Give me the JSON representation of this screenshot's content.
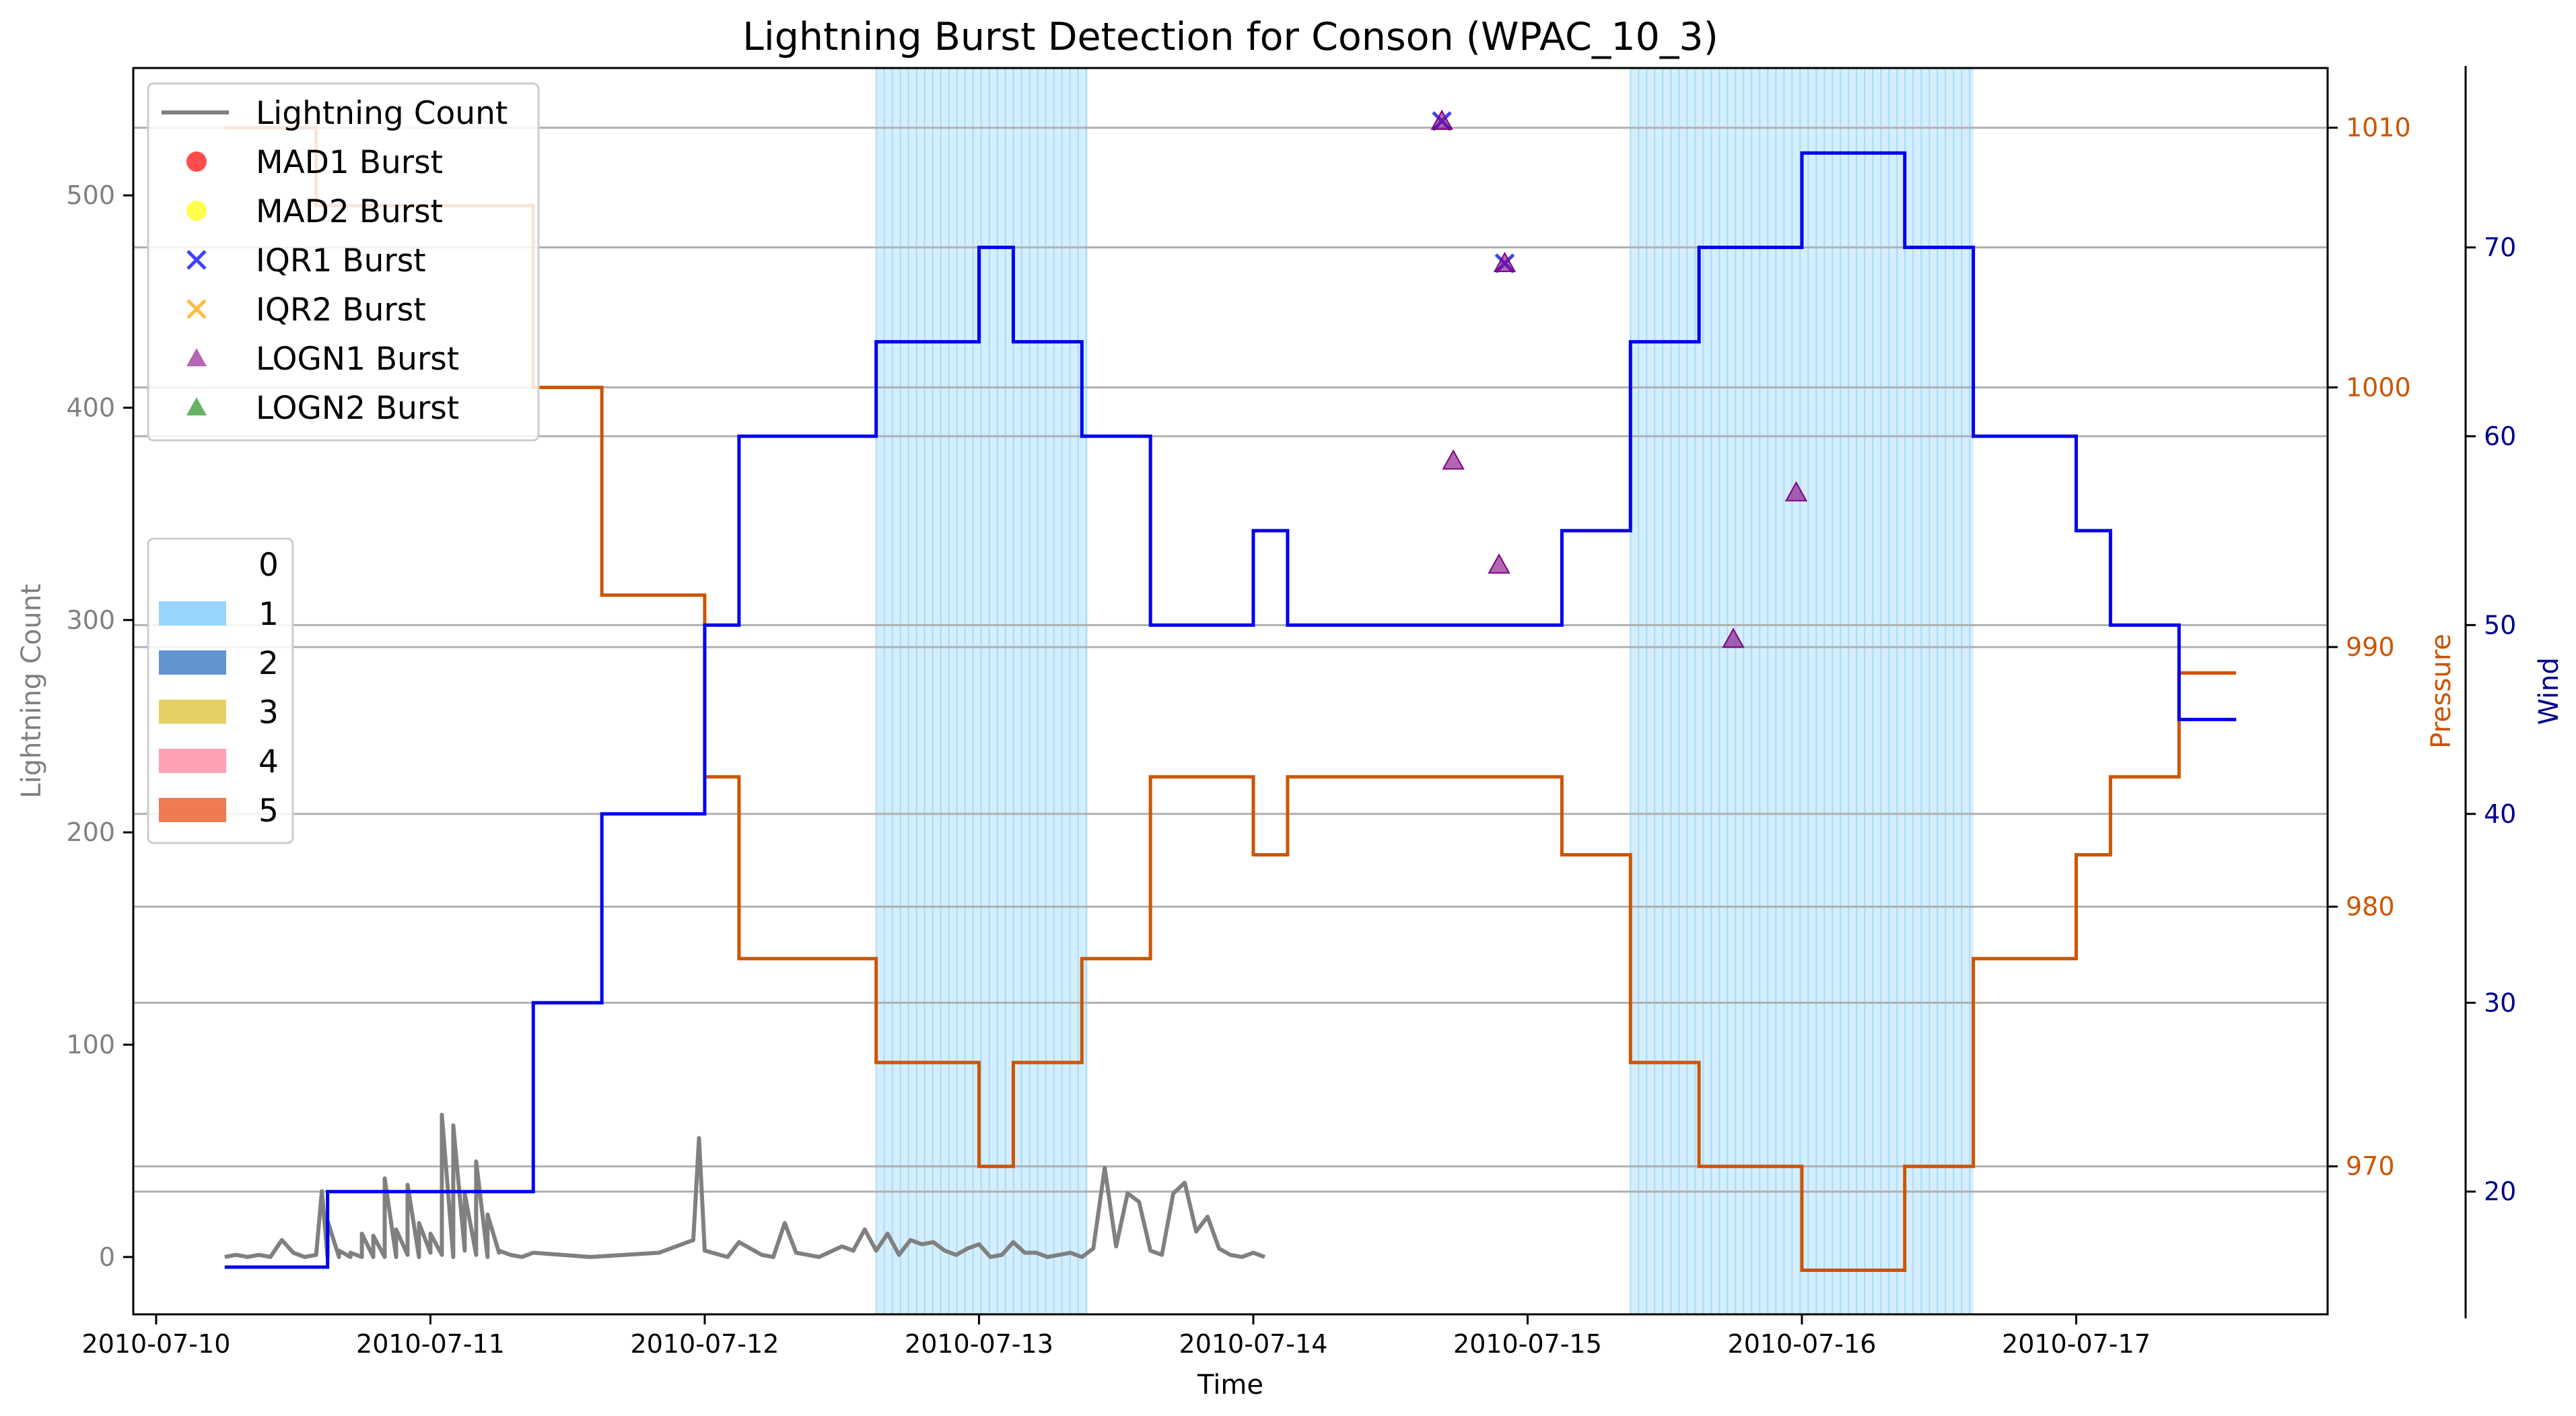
{
  "chart_data": {
    "type": "line",
    "title": "Lightning Burst Detection for Conson (WPAC_10_3)",
    "xlabel": "Time",
    "ylabel": "Lightning Count",
    "ylabel_right1": "Pressure",
    "ylabel_right2": "Wind",
    "x_range": [
      "2010-07-09T22:00",
      "2010-07-17T22:00"
    ],
    "x_ticks": [
      "2010-07-10",
      "2010-07-11",
      "2010-07-12",
      "2010-07-13",
      "2010-07-14",
      "2010-07-15",
      "2010-07-16",
      "2010-07-17"
    ],
    "ylim_left": [
      -27,
      560
    ],
    "ylim_pressure": [
      964.3,
      1012.3
    ],
    "ylim_wind": [
      13.5,
      79.5
    ],
    "yticks_left": [
      0,
      100,
      200,
      300,
      400,
      500
    ],
    "yticks_pressure": [
      970,
      980,
      990,
      1000,
      1010
    ],
    "yticks_wind": [
      20,
      30,
      40,
      50,
      60,
      70
    ],
    "grid": "horizontal",
    "colors": {
      "lightning": "#808080",
      "pressure": "#cc5500",
      "wind": "#0000ee",
      "wind_axis": "#00008b",
      "left_axis": "#808080",
      "grid": "#b0b0b0",
      "band1": "#87cefa",
      "band2": "#4682c8",
      "band3": "#e1c84b",
      "band4": "#ff91a5",
      "band5": "#eb6432",
      "mad1": "#ff0000",
      "mad2": "#ffff00",
      "iqr1": "#0000ff",
      "iqr2": "#ffa500",
      "logn1": "#800080",
      "logn2": "#008000"
    },
    "shaded_regions": [
      {
        "category": "1",
        "start": "2010-07-12T15:00",
        "end": "2010-07-13T09:30"
      },
      {
        "category": "1",
        "start": "2010-07-15T09:00",
        "end": "2010-07-16T15:00"
      }
    ],
    "legend_series": [
      "Lightning Count",
      "MAD1 Burst",
      "MAD2 Burst",
      "IQR1 Burst",
      "IQR2 Burst",
      "LOGN1 Burst",
      "LOGN2 Burst"
    ],
    "legend_categories": [
      "0",
      "1",
      "2",
      "3",
      "4",
      "5"
    ],
    "legend_series_placement": "top-left",
    "legend_categories_placement": "center-left",
    "series": [
      {
        "name": "Lightning Count",
        "points": [
          [
            "2010-07-10T06:00",
            0
          ],
          [
            "2010-07-10T07:00",
            1
          ],
          [
            "2010-07-10T08:00",
            0
          ],
          [
            "2010-07-10T09:00",
            1
          ],
          [
            "2010-07-10T10:00",
            0
          ],
          [
            "2010-07-10T11:00",
            8
          ],
          [
            "2010-07-10T12:00",
            2
          ],
          [
            "2010-07-10T13:00",
            0
          ],
          [
            "2010-07-10T14:00",
            1
          ],
          [
            "2010-07-10T15:00",
            0
          ],
          [
            "2010-07-10T16:00",
            0
          ],
          [
            "2010-07-10T17:00",
            0
          ],
          [
            "2010-07-10T18:00",
            0
          ],
          [
            "2010-07-10T19:00",
            0
          ],
          [
            "2010-07-10T20:00",
            0
          ],
          [
            "2010-07-10T21:00",
            0
          ],
          [
            "2010-07-10T22:00",
            1
          ],
          [
            "2010-07-10T23:00",
            0
          ],
          [
            "2010-07-11T00:00",
            2
          ],
          [
            "2010-07-11T01:00",
            1
          ],
          [
            "2010-07-11T02:00",
            0
          ],
          [
            "2010-07-11T03:00",
            3
          ],
          [
            "2010-07-11T04:00",
            1
          ],
          [
            "2010-07-11T05:00",
            0
          ],
          [
            "2010-07-11T06:00",
            2
          ],
          [
            "2010-07-11T07:00",
            1
          ],
          [
            "2010-07-11T08:00",
            0
          ],
          [
            "2010-07-11T09:00",
            2
          ],
          [
            "2010-07-10T14:30",
            31
          ],
          [
            "2010-07-10T15:00",
            17
          ],
          [
            "2010-07-10T16:00",
            3
          ],
          [
            "2010-07-10T17:00",
            2
          ],
          [
            "2010-07-10T18:00",
            11
          ],
          [
            "2010-07-10T19:00",
            10
          ],
          [
            "2010-07-10T20:00",
            37
          ],
          [
            "2010-07-10T21:00",
            13
          ],
          [
            "2010-07-10T22:00",
            34
          ],
          [
            "2010-07-10T23:00",
            16
          ],
          [
            "2010-07-11T00:00",
            11
          ],
          [
            "2010-07-11T01:00",
            67
          ],
          [
            "2010-07-11T02:00",
            62
          ],
          [
            "2010-07-11T03:00",
            30
          ],
          [
            "2010-07-11T04:00",
            45
          ],
          [
            "2010-07-11T05:00",
            20
          ],
          [
            "2010-07-11T06:00",
            3
          ],
          [
            "2010-07-11T08:00",
            0
          ],
          [
            "2010-07-11T14:00",
            0
          ],
          [
            "2010-07-11T20:00",
            2
          ],
          [
            "2010-07-11T23:00",
            8
          ],
          [
            "2010-07-11T23:30",
            56
          ],
          [
            "2010-07-12T00:00",
            3
          ],
          [
            "2010-07-12T02:00",
            0
          ],
          [
            "2010-07-12T03:00",
            7
          ],
          [
            "2010-07-12T05:00",
            1
          ],
          [
            "2010-07-12T06:00",
            0
          ],
          [
            "2010-07-12T07:00",
            16
          ],
          [
            "2010-07-12T08:00",
            2
          ],
          [
            "2010-07-12T10:00",
            0
          ],
          [
            "2010-07-12T12:00",
            5
          ],
          [
            "2010-07-12T13:00",
            3
          ],
          [
            "2010-07-12T14:00",
            13
          ],
          [
            "2010-07-12T15:00",
            3
          ],
          [
            "2010-07-12T16:00",
            11
          ],
          [
            "2010-07-12T17:00",
            1
          ],
          [
            "2010-07-12T18:00",
            8
          ],
          [
            "2010-07-12T19:00",
            6
          ],
          [
            "2010-07-12T20:00",
            7
          ],
          [
            "2010-07-12T21:00",
            3
          ],
          [
            "2010-07-12T22:00",
            1
          ],
          [
            "2010-07-12T23:00",
            4
          ],
          [
            "2010-07-13T00:00",
            6
          ],
          [
            "2010-07-13T01:00",
            0
          ],
          [
            "2010-07-13T02:00",
            1
          ],
          [
            "2010-07-13T03:00",
            7
          ],
          [
            "2010-07-13T04:00",
            2
          ],
          [
            "2010-07-13T05:00",
            2
          ],
          [
            "2010-07-13T06:00",
            0
          ],
          [
            "2010-07-13T07:00",
            1
          ],
          [
            "2010-07-13T08:00",
            2
          ],
          [
            "2010-07-13T09:00",
            0
          ],
          [
            "2010-07-13T10:00",
            4
          ],
          [
            "2010-07-13T11:00",
            42
          ],
          [
            "2010-07-13T12:00",
            5
          ],
          [
            "2010-07-13T13:00",
            30
          ],
          [
            "2010-07-13T14:00",
            26
          ],
          [
            "2010-07-13T15:00",
            3
          ],
          [
            "2010-07-13T16:00",
            1
          ],
          [
            "2010-07-13T17:00",
            30
          ],
          [
            "2010-07-13T18:00",
            35
          ],
          [
            "2010-07-13T19:00",
            12
          ],
          [
            "2010-07-13T20:00",
            19
          ],
          [
            "2010-07-13T21:00",
            4
          ],
          [
            "2010-07-13T22:00",
            1
          ],
          [
            "2010-07-13T23:00",
            0
          ],
          [
            "2010-07-14T00:00",
            2
          ],
          [
            "2010-07-14T01:00",
            0
          ]
        ]
      },
      {
        "name": "Pressure",
        "axis": "pressure",
        "step": true,
        "points": [
          [
            "2010-07-10T06:00",
            1010
          ],
          [
            "2010-07-10T14:00",
            1007
          ],
          [
            "2010-07-11T09:00",
            1000
          ],
          [
            "2010-07-11T15:00",
            992
          ],
          [
            "2010-07-12T00:00",
            985
          ],
          [
            "2010-07-12T03:00",
            978
          ],
          [
            "2010-07-12T15:00",
            974
          ],
          [
            "2010-07-13T00:00",
            970
          ],
          [
            "2010-07-13T03:00",
            974
          ],
          [
            "2010-07-13T09:00",
            978
          ],
          [
            "2010-07-13T15:00",
            985
          ],
          [
            "2010-07-14T00:00",
            982
          ],
          [
            "2010-07-14T03:00",
            985
          ],
          [
            "2010-07-15T03:00",
            982
          ],
          [
            "2010-07-15T09:00",
            974
          ],
          [
            "2010-07-15T15:00",
            970
          ],
          [
            "2010-07-16T00:00",
            966
          ],
          [
            "2010-07-16T09:00",
            970
          ],
          [
            "2010-07-16T15:00",
            978
          ],
          [
            "2010-07-17T00:00",
            982
          ],
          [
            "2010-07-17T03:00",
            985
          ],
          [
            "2010-07-17T09:00",
            989
          ],
          [
            "2010-07-17T14:00",
            989
          ]
        ]
      },
      {
        "name": "Wind",
        "axis": "wind",
        "step": true,
        "points": [
          [
            "2010-07-10T06:00",
            16
          ],
          [
            "2010-07-10T15:00",
            20
          ],
          [
            "2010-07-11T09:00",
            30
          ],
          [
            "2010-07-11T15:00",
            40
          ],
          [
            "2010-07-12T00:00",
            50
          ],
          [
            "2010-07-12T03:00",
            60
          ],
          [
            "2010-07-12T15:00",
            65
          ],
          [
            "2010-07-13T00:00",
            70
          ],
          [
            "2010-07-13T03:00",
            65
          ],
          [
            "2010-07-13T09:00",
            60
          ],
          [
            "2010-07-13T15:00",
            50
          ],
          [
            "2010-07-14T00:00",
            55
          ],
          [
            "2010-07-14T03:00",
            50
          ],
          [
            "2010-07-15T03:00",
            55
          ],
          [
            "2010-07-15T09:00",
            65
          ],
          [
            "2010-07-15T15:00",
            70
          ],
          [
            "2010-07-16T00:00",
            75
          ],
          [
            "2010-07-16T09:00",
            70
          ],
          [
            "2010-07-16T15:00",
            60
          ],
          [
            "2010-07-17T00:00",
            55
          ],
          [
            "2010-07-17T03:00",
            50
          ],
          [
            "2010-07-17T09:00",
            45
          ],
          [
            "2010-07-17T14:00",
            45
          ]
        ]
      },
      {
        "name": "IQR1 Burst",
        "marker": "x",
        "points": [
          [
            "2010-07-14T16:30",
            535
          ],
          [
            "2010-07-14T22:00",
            468
          ]
        ]
      },
      {
        "name": "LOGN1 Burst",
        "marker": "triangle",
        "points": [
          [
            "2010-07-14T16:30",
            535
          ],
          [
            "2010-07-14T17:30",
            375
          ],
          [
            "2010-07-14T21:30",
            326
          ],
          [
            "2010-07-14T22:00",
            468
          ],
          [
            "2010-07-15T18:00",
            291
          ],
          [
            "2010-07-15T23:30",
            360
          ]
        ]
      }
    ]
  }
}
